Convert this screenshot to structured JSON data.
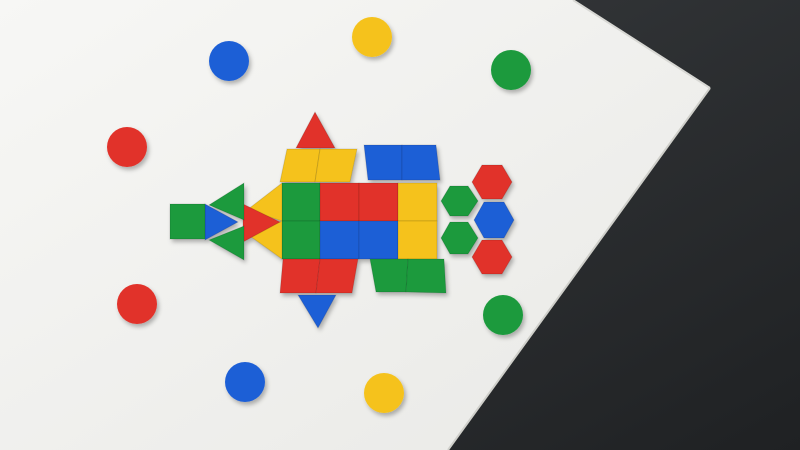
{
  "scene": {
    "description_tags": [
      "table-top",
      "plastic-pattern-blocks",
      "rocket-shape"
    ],
    "palette": {
      "table": "#f3f3f1",
      "floor": "#2b2e31",
      "red": "#e1312a",
      "blue": "#1f5fd6",
      "green": "#1a9a3c",
      "yellow": "#f5c21a"
    },
    "loose_chips": [
      {
        "color": "blue"
      },
      {
        "color": "yellow"
      },
      {
        "color": "green"
      },
      {
        "color": "red"
      },
      {
        "color": "red"
      },
      {
        "color": "green"
      },
      {
        "color": "blue"
      },
      {
        "color": "yellow"
      }
    ]
  }
}
